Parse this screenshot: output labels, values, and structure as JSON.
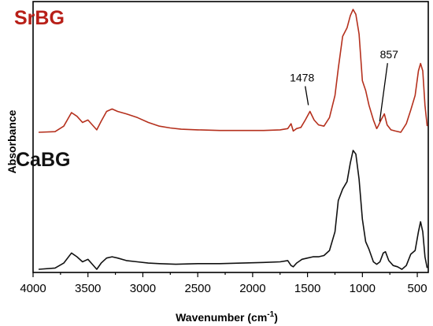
{
  "chart_data": {
    "type": "line",
    "xlabel": "Wavenumber (cm",
    "xlabel_sup": "-1",
    "xlabel_end": ")",
    "ylabel": "Absorbance",
    "xlim": [
      4000,
      400
    ],
    "x_reversed": true,
    "xticks": [
      4000,
      3500,
      3000,
      2500,
      2000,
      1500,
      1000,
      500
    ],
    "ylim": [
      0,
      1
    ],
    "grid": false,
    "series": [
      {
        "name": "SrBG",
        "color": "#b5301d",
        "label_color": "#b81f18",
        "points": [
          [
            3950,
            0.0
          ],
          [
            3800,
            0.005
          ],
          [
            3720,
            0.05
          ],
          [
            3650,
            0.16
          ],
          [
            3600,
            0.13
          ],
          [
            3550,
            0.08
          ],
          [
            3500,
            0.1
          ],
          [
            3460,
            0.06
          ],
          [
            3420,
            0.02
          ],
          [
            3380,
            0.09
          ],
          [
            3330,
            0.17
          ],
          [
            3280,
            0.19
          ],
          [
            3230,
            0.17
          ],
          [
            3150,
            0.15
          ],
          [
            3050,
            0.12
          ],
          [
            2950,
            0.08
          ],
          [
            2850,
            0.05
          ],
          [
            2750,
            0.035
          ],
          [
            2650,
            0.025
          ],
          [
            2500,
            0.02
          ],
          [
            2300,
            0.015
          ],
          [
            2100,
            0.015
          ],
          [
            1900,
            0.015
          ],
          [
            1750,
            0.02
          ],
          [
            1680,
            0.03
          ],
          [
            1650,
            0.07
          ],
          [
            1630,
            0.01
          ],
          [
            1600,
            0.03
          ],
          [
            1560,
            0.04
          ],
          [
            1520,
            0.1
          ],
          [
            1478,
            0.17
          ],
          [
            1440,
            0.1
          ],
          [
            1400,
            0.06
          ],
          [
            1350,
            0.05
          ],
          [
            1300,
            0.12
          ],
          [
            1250,
            0.3
          ],
          [
            1220,
            0.52
          ],
          [
            1180,
            0.78
          ],
          [
            1140,
            0.85
          ],
          [
            1110,
            0.95
          ],
          [
            1085,
            1.0
          ],
          [
            1060,
            0.96
          ],
          [
            1030,
            0.8
          ],
          [
            1000,
            0.42
          ],
          [
            970,
            0.34
          ],
          [
            940,
            0.22
          ],
          [
            900,
            0.1
          ],
          [
            870,
            0.03
          ],
          [
            857,
            0.05
          ],
          [
            830,
            0.1
          ],
          [
            800,
            0.15
          ],
          [
            775,
            0.06
          ],
          [
            740,
            0.02
          ],
          [
            700,
            0.01
          ],
          [
            650,
            0.0
          ],
          [
            600,
            0.07
          ],
          [
            560,
            0.18
          ],
          [
            520,
            0.3
          ],
          [
            490,
            0.5
          ],
          [
            470,
            0.56
          ],
          [
            450,
            0.5
          ],
          [
            430,
            0.22
          ],
          [
            410,
            0.05
          ]
        ]
      },
      {
        "name": "CaBG",
        "color": "#111111",
        "label_color": "#111111",
        "points": [
          [
            3950,
            0.0
          ],
          [
            3800,
            0.01
          ],
          [
            3720,
            0.05
          ],
          [
            3650,
            0.13
          ],
          [
            3600,
            0.1
          ],
          [
            3550,
            0.06
          ],
          [
            3500,
            0.08
          ],
          [
            3460,
            0.04
          ],
          [
            3420,
            0.0
          ],
          [
            3380,
            0.05
          ],
          [
            3330,
            0.09
          ],
          [
            3280,
            0.1
          ],
          [
            3230,
            0.09
          ],
          [
            3150,
            0.07
          ],
          [
            3050,
            0.06
          ],
          [
            2950,
            0.05
          ],
          [
            2850,
            0.045
          ],
          [
            2700,
            0.04
          ],
          [
            2500,
            0.045
          ],
          [
            2300,
            0.045
          ],
          [
            2100,
            0.05
          ],
          [
            1900,
            0.055
          ],
          [
            1750,
            0.06
          ],
          [
            1680,
            0.07
          ],
          [
            1650,
            0.03
          ],
          [
            1630,
            0.02
          ],
          [
            1600,
            0.05
          ],
          [
            1550,
            0.08
          ],
          [
            1500,
            0.09
          ],
          [
            1450,
            0.1
          ],
          [
            1400,
            0.1
          ],
          [
            1350,
            0.11
          ],
          [
            1300,
            0.15
          ],
          [
            1250,
            0.3
          ],
          [
            1220,
            0.55
          ],
          [
            1180,
            0.64
          ],
          [
            1140,
            0.7
          ],
          [
            1110,
            0.85
          ],
          [
            1085,
            0.95
          ],
          [
            1060,
            0.92
          ],
          [
            1030,
            0.72
          ],
          [
            1000,
            0.4
          ],
          [
            970,
            0.22
          ],
          [
            940,
            0.16
          ],
          [
            900,
            0.06
          ],
          [
            870,
            0.04
          ],
          [
            840,
            0.06
          ],
          [
            810,
            0.13
          ],
          [
            790,
            0.14
          ],
          [
            760,
            0.07
          ],
          [
            720,
            0.03
          ],
          [
            680,
            0.02
          ],
          [
            640,
            0.0
          ],
          [
            600,
            0.03
          ],
          [
            560,
            0.12
          ],
          [
            520,
            0.15
          ],
          [
            490,
            0.3
          ],
          [
            470,
            0.38
          ],
          [
            450,
            0.3
          ],
          [
            430,
            0.1
          ],
          [
            410,
            0.01
          ]
        ]
      }
    ],
    "annotations": [
      {
        "text": "1478",
        "x": 1478
      },
      {
        "text": "857",
        "x": 857
      }
    ]
  }
}
